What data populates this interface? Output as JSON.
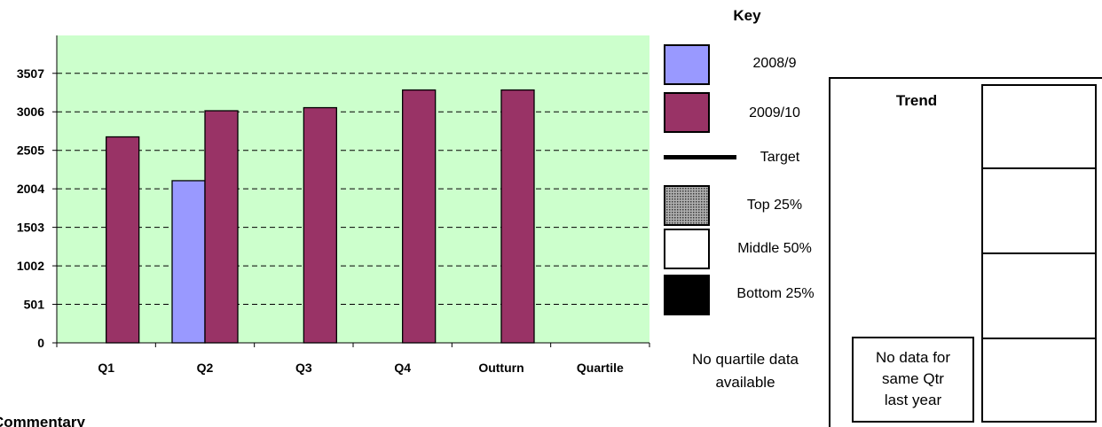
{
  "chart_data": {
    "type": "bar",
    "categories": [
      "Q1",
      "Q2",
      "Q3",
      "Q4",
      "Outturn",
      "Quartile"
    ],
    "series": [
      {
        "name": "2008/9",
        "values": [
          null,
          2110,
          null,
          null,
          null,
          null
        ],
        "color": "#9999ff"
      },
      {
        "name": "2009/10",
        "values": [
          2680,
          3020,
          3060,
          3290,
          3290,
          null
        ],
        "color": "#993366"
      }
    ],
    "yticks": [
      0,
      501,
      1002,
      1503,
      2004,
      2505,
      3006,
      3507
    ],
    "ylim": [
      0,
      4000
    ],
    "grid": true,
    "plot_background": "#ccffcc",
    "legend_position": "right"
  },
  "legend": {
    "title": "Key",
    "items": [
      {
        "label": "2008/9",
        "kind": "swatch",
        "fill": "#9999ff"
      },
      {
        "label": "2009/10",
        "kind": "swatch",
        "fill": "#993366"
      },
      {
        "label": "Target",
        "kind": "line",
        "fill": "#000000"
      },
      {
        "label": "Top 25%",
        "kind": "swatch",
        "fill": "#888888"
      },
      {
        "label": "Middle 50%",
        "kind": "swatch",
        "fill": "#ffffff"
      },
      {
        "label": "Bottom 25%",
        "kind": "swatch",
        "fill": "#000000"
      }
    ],
    "note_line1": "No quartile data",
    "note_line2": "available"
  },
  "trend": {
    "title": "Trend",
    "no_data_line1": "No data for",
    "no_data_line2": "same Qtr",
    "no_data_line3": "last year"
  },
  "commentary": {
    "label": "Commentary"
  }
}
